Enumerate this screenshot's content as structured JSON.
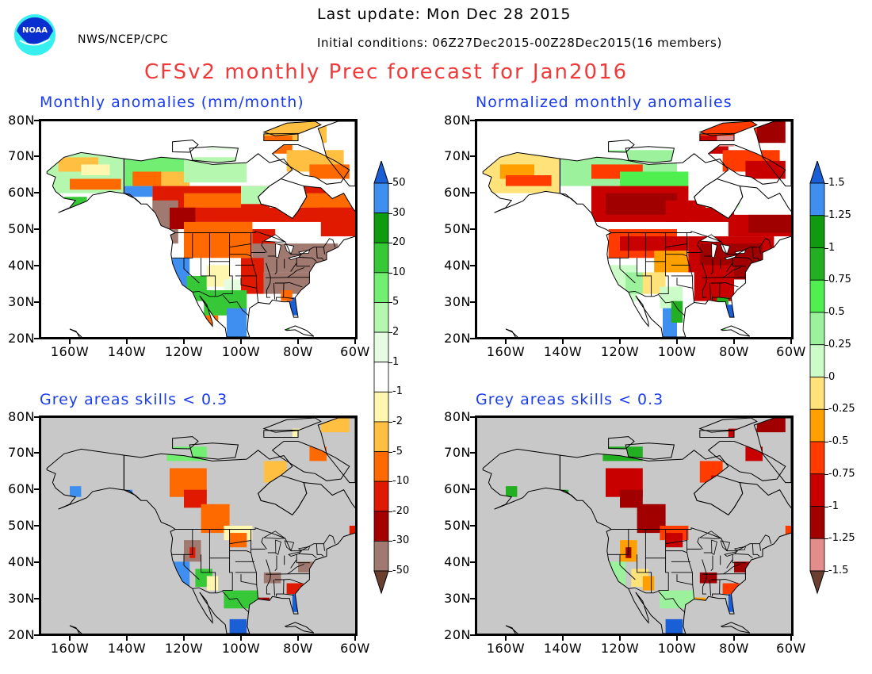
{
  "header": {
    "org": "NWS/NCEP/CPC",
    "logo_text": "NOAA",
    "last_update": "Last update: Mon Dec 28 2015",
    "initial_conditions": "Initial conditions: 06Z27Dec2015-00Z28Dec2015(16 members)",
    "main_title": "CFSv2 monthly Prec forecast for Jan2016"
  },
  "axes": {
    "lat_labels": [
      "80N",
      "70N",
      "60N",
      "50N",
      "40N",
      "30N",
      "20N"
    ],
    "lon_labels": [
      "160W",
      "140W",
      "120W",
      "100W",
      "80W",
      "60W"
    ]
  },
  "panels": [
    {
      "id": "anom",
      "title": "Monthly anomalies (mm/month)",
      "style": "anom",
      "grey_mask": false
    },
    {
      "id": "norm",
      "title": "Normalized monthly anomalies",
      "style": "norm",
      "grey_mask": false
    },
    {
      "id": "anom_skill",
      "title": "Grey areas skills < 0.3",
      "style": "anom",
      "grey_mask": true
    },
    {
      "id": "norm_skill",
      "title": "Grey areas skills < 0.3",
      "style": "norm",
      "grey_mask": true
    }
  ],
  "colorbars": {
    "anom": {
      "labels": [
        "50",
        "30",
        "20",
        "10",
        "5",
        "2",
        "1",
        "-1",
        "-2",
        "-5",
        "-10",
        "-20",
        "-30",
        "-50"
      ],
      "colors": [
        "#1a5fd6",
        "#3f8ff0",
        "#0f9a0f",
        "#36c836",
        "#72ee72",
        "#b6f7b0",
        "#e6fce2",
        "#ffffff",
        "#fff6b0",
        "#ffbf40",
        "#ff6a00",
        "#e01a00",
        "#a50000",
        "#a07a70",
        "#6b3f30"
      ]
    },
    "norm": {
      "labels": [
        "1.5",
        "1.25",
        "1",
        "0.75",
        "0.5",
        "0.25",
        "0",
        "-0.25",
        "-0.5",
        "-0.75",
        "-1",
        "-1.25",
        "-1.5"
      ],
      "colors": [
        "#1a5fd6",
        "#3f8ff0",
        "#0f9a0f",
        "#22b022",
        "#50ef50",
        "#9cf29c",
        "#ccfcc8",
        "#ffe27a",
        "#ffa000",
        "#ff3b00",
        "#c80000",
        "#a00000",
        "#e38c8c",
        "#6b3f30"
      ]
    }
  },
  "colors": {
    "title_red": "#f03a3a",
    "subtitle_blue": "#1a3cf0",
    "mask_grey": "#c8c8c8"
  }
}
